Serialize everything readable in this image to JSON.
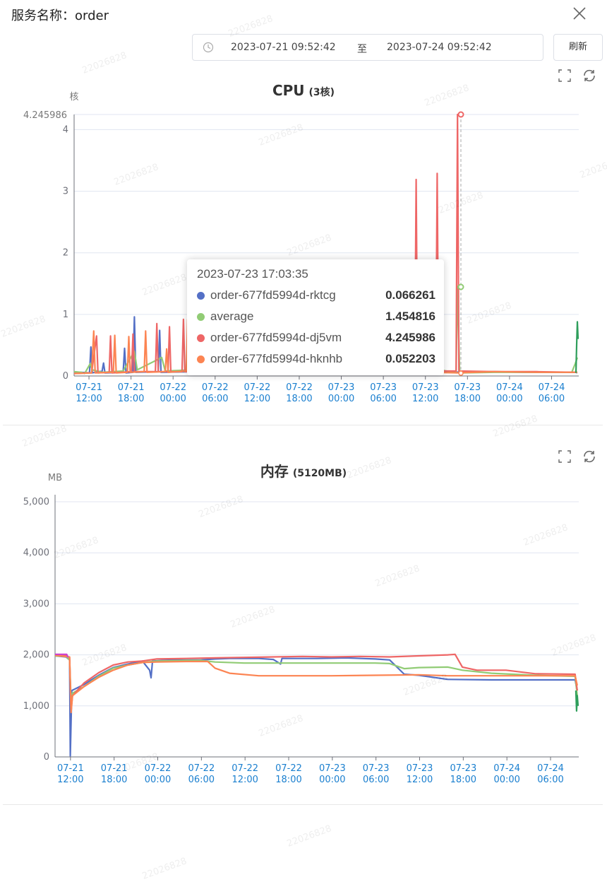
{
  "header": {
    "title": "服务名称：order",
    "date_start": "2023-07-21 09:52:42",
    "date_sep": "至",
    "date_end": "2023-07-24 09:52:42",
    "refresh_label": "刷新",
    "watermark": "22026828"
  },
  "tooltip": {
    "time": "2023-07-23 17:03:35",
    "rows": [
      {
        "name": "order-677fd5994d-rktcg",
        "value": "0.066261",
        "color": "#5470c6"
      },
      {
        "name": "average",
        "value": "1.454816",
        "color": "#91cc75"
      },
      {
        "name": "order-677fd5994d-dj5vm",
        "value": "4.245986",
        "color": "#ee6666"
      },
      {
        "name": "order-677fd5994d-hknhb",
        "value": "0.052203",
        "color": "#fc8452"
      }
    ]
  },
  "chart_data": [
    {
      "type": "line",
      "title": "CPU",
      "subtitle": "(3核)",
      "ylabel": "核",
      "ymax_label": "4.245986",
      "ylim": [
        0,
        4.245986
      ],
      "y_ticks": [
        "0",
        "1",
        "2",
        "3",
        "4"
      ],
      "x_ticks": [
        "07-21\n12:00",
        "07-21\n18:00",
        "07-22\n00:00",
        "07-22\n06:00",
        "07-22\n12:00",
        "07-22\n18:00",
        "07-23\n00:00",
        "07-23\n06:00",
        "07-23\n12:00",
        "07-23\n18:00",
        "07-24\n00:00",
        "07-24\n06:00"
      ],
      "x_tick_hours": [
        2.12,
        8.12,
        14.12,
        20.12,
        26.12,
        32.12,
        38.12,
        44.12,
        50.12,
        56.12,
        62.12,
        68.12
      ],
      "x_range_hours": [
        0,
        72
      ],
      "series": [
        {
          "name": "order-677fd5994d-rktcg",
          "color": "#5470c6",
          "points": [
            [
              0,
              0.05
            ],
            [
              1,
              0.06
            ],
            [
              2.2,
              0.05
            ],
            [
              2.4,
              0.47
            ],
            [
              2.6,
              0.05
            ],
            [
              4,
              0.08
            ],
            [
              4.2,
              0.21
            ],
            [
              4.4,
              0.05
            ],
            [
              7,
              0.06
            ],
            [
              7.2,
              0.45
            ],
            [
              7.4,
              0.05
            ],
            [
              8.4,
              0.06
            ],
            [
              8.6,
              0.96
            ],
            [
              8.8,
              0.06
            ],
            [
              12,
              0.07
            ],
            [
              12.2,
              0.74
            ],
            [
              12.4,
              0.06
            ],
            [
              17,
              0.07
            ],
            [
              17.3,
              0.62
            ],
            [
              17.6,
              0.06
            ],
            [
              20,
              0.06
            ],
            [
              30,
              0.07
            ],
            [
              40,
              0.06
            ],
            [
              48,
              0.06
            ],
            [
              52,
              0.07
            ],
            [
              56,
              0.06
            ],
            [
              60,
              0.07
            ],
            [
              64,
              0.06
            ],
            [
              71.6,
              0.06
            ],
            [
              71.8,
              0.05
            ]
          ]
        },
        {
          "name": "average",
          "color": "#91cc75",
          "points": [
            [
              0,
              0.07
            ],
            [
              1,
              0.06
            ],
            [
              1.5,
              0.04
            ],
            [
              2.3,
              0.2
            ],
            [
              2.6,
              0.1
            ],
            [
              4,
              0.06
            ],
            [
              7,
              0.08
            ],
            [
              8.6,
              0.4
            ],
            [
              9,
              0.1
            ],
            [
              12.5,
              0.3
            ],
            [
              13,
              0.08
            ],
            [
              17,
              0.1
            ],
            [
              20,
              0.09
            ],
            [
              30,
              0.08
            ],
            [
              40,
              0.07
            ],
            [
              48.8,
              0.08
            ],
            [
              49,
              1.1
            ],
            [
              49.2,
              0.1
            ],
            [
              51.6,
              0.1
            ],
            [
              51.9,
              1.13
            ],
            [
              52.2,
              0.1
            ],
            [
              54.5,
              0.05
            ],
            [
              54.7,
              1.454816
            ],
            [
              55,
              0.05
            ],
            [
              60,
              0.06
            ],
            [
              64,
              0.06
            ],
            [
              71,
              0.06
            ],
            [
              71.5,
              0.2
            ],
            [
              71.8,
              0.3
            ]
          ]
        },
        {
          "name": "order-677fd5994d-dj5vm",
          "color": "#ee6666",
          "points": [
            [
              0,
              0.04
            ],
            [
              2.5,
              0.05
            ],
            [
              3.2,
              0.65
            ],
            [
              3.4,
              0.05
            ],
            [
              5,
              0.06
            ],
            [
              5.2,
              0.65
            ],
            [
              5.4,
              0.05
            ],
            [
              8.2,
              0.07
            ],
            [
              8.4,
              0.68
            ],
            [
              8.6,
              0.07
            ],
            [
              11.6,
              0.07
            ],
            [
              11.8,
              0.85
            ],
            [
              12,
              0.07
            ],
            [
              13.4,
              0.07
            ],
            [
              13.6,
              0.8
            ],
            [
              13.8,
              0.07
            ],
            [
              15.4,
              0.07
            ],
            [
              15.6,
              0.92
            ],
            [
              15.8,
              0.07
            ],
            [
              20,
              0.08
            ],
            [
              30,
              0.08
            ],
            [
              40,
              0.07
            ],
            [
              48.6,
              0.08
            ],
            [
              48.8,
              3.19
            ],
            [
              49,
              0.08
            ],
            [
              51.6,
              0.08
            ],
            [
              51.8,
              3.29
            ],
            [
              52,
              0.08
            ],
            [
              54.5,
              0.08
            ],
            [
              54.7,
              4.245986
            ],
            [
              54.9,
              0.08
            ],
            [
              60,
              0.07
            ],
            [
              66,
              0.07
            ],
            [
              71.8,
              0.06
            ]
          ]
        },
        {
          "name": "order-677fd5994d-hknhb",
          "color": "#fc8452",
          "points": [
            [
              0,
              0.04
            ],
            [
              2.5,
              0.05
            ],
            [
              2.8,
              0.73
            ],
            [
              3,
              0.05
            ],
            [
              5.6,
              0.06
            ],
            [
              5.8,
              0.66
            ],
            [
              6,
              0.05
            ],
            [
              7.6,
              0.06
            ],
            [
              7.8,
              0.64
            ],
            [
              8,
              0.06
            ],
            [
              10,
              0.07
            ],
            [
              10.2,
              0.73
            ],
            [
              10.4,
              0.06
            ],
            [
              13,
              0.07
            ],
            [
              13.2,
              0.44
            ],
            [
              13.4,
              0.06
            ],
            [
              16,
              0.08
            ],
            [
              16.2,
              0.92
            ],
            [
              16.4,
              0.07
            ],
            [
              20,
              0.08
            ],
            [
              30,
              0.08
            ],
            [
              40,
              0.07
            ],
            [
              50,
              0.06
            ],
            [
              54.7,
              0.052203
            ],
            [
              60,
              0.07
            ],
            [
              66,
              0.06
            ],
            [
              71.8,
              0.06
            ]
          ]
        },
        {
          "name": "",
          "color": "#2e9e5b",
          "points": [
            [
              71.6,
              0.05
            ],
            [
              71.7,
              0.5
            ],
            [
              71.8,
              0.88
            ],
            [
              71.9,
              0.6
            ]
          ]
        }
      ]
    },
    {
      "type": "line",
      "title": "内存",
      "subtitle": "(5120MB)",
      "ylabel": "MB",
      "ylim": [
        0,
        5000
      ],
      "y_ticks": [
        "0",
        "1,000",
        "2,000",
        "3,000",
        "4,000",
        "5,000"
      ],
      "x_ticks": [
        "07-21\n12:00",
        "07-21\n18:00",
        "07-22\n00:00",
        "07-22\n06:00",
        "07-22\n12:00",
        "07-22\n18:00",
        "07-23\n00:00",
        "07-23\n06:00",
        "07-23\n12:00",
        "07-23\n18:00",
        "07-24\n00:00",
        "07-24\n06:00"
      ],
      "x_tick_hours": [
        2.12,
        8.12,
        14.12,
        20.12,
        26.12,
        32.12,
        38.12,
        44.12,
        50.12,
        56.12,
        62.12,
        68.12
      ],
      "x_range_hours": [
        0,
        72
      ],
      "series": [
        {
          "name": "order-677fd5994d-rktcg",
          "color": "#5470c6",
          "points": [
            [
              0,
              1980
            ],
            [
              1.5,
              1960
            ],
            [
              2,
              1900
            ],
            [
              2.1,
              20
            ],
            [
              2.3,
              1300
            ],
            [
              4,
              1420
            ],
            [
              6,
              1600
            ],
            [
              8,
              1750
            ],
            [
              10,
              1820
            ],
            [
              12,
              1880
            ],
            [
              13,
              1700
            ],
            [
              13.2,
              1550
            ],
            [
              13.4,
              1880
            ],
            [
              16,
              1900
            ],
            [
              20,
              1900
            ],
            [
              22,
              1920
            ],
            [
              24,
              1930
            ],
            [
              28,
              1930
            ],
            [
              30,
              1910
            ],
            [
              31,
              1820
            ],
            [
              31.2,
              1930
            ],
            [
              36,
              1930
            ],
            [
              40,
              1940
            ],
            [
              44,
              1920
            ],
            [
              46,
              1900
            ],
            [
              48,
              1620
            ],
            [
              50,
              1600
            ],
            [
              54,
              1520
            ],
            [
              60,
              1510
            ],
            [
              66,
              1510
            ],
            [
              71.5,
              1510
            ],
            [
              71.8,
              1300
            ]
          ]
        },
        {
          "name": "average",
          "color": "#91cc75",
          "points": [
            [
              0,
              1980
            ],
            [
              1.5,
              1970
            ],
            [
              2,
              1900
            ],
            [
              2.2,
              1100
            ],
            [
              2.4,
              1250
            ],
            [
              4,
              1380
            ],
            [
              6,
              1580
            ],
            [
              8,
              1740
            ],
            [
              10,
              1800
            ],
            [
              12,
              1850
            ],
            [
              14,
              1880
            ],
            [
              18,
              1890
            ],
            [
              20,
              1890
            ],
            [
              22,
              1860
            ],
            [
              26,
              1840
            ],
            [
              30,
              1840
            ],
            [
              36,
              1840
            ],
            [
              40,
              1840
            ],
            [
              44,
              1840
            ],
            [
              46,
              1830
            ],
            [
              48,
              1730
            ],
            [
              50,
              1750
            ],
            [
              54,
              1760
            ],
            [
              56,
              1700
            ],
            [
              60,
              1640
            ],
            [
              66,
              1600
            ],
            [
              71.5,
              1580
            ],
            [
              71.8,
              1200
            ]
          ]
        },
        {
          "name": "order-677fd5994d-dj5vm",
          "color": "#ee6666",
          "points": [
            [
              0,
              1990
            ],
            [
              1.5,
              1980
            ],
            [
              2,
              1950
            ],
            [
              2.2,
              900
            ],
            [
              2.4,
              1200
            ],
            [
              4,
              1450
            ],
            [
              6,
              1650
            ],
            [
              8,
              1800
            ],
            [
              10,
              1860
            ],
            [
              12,
              1880
            ],
            [
              14,
              1920
            ],
            [
              18,
              1930
            ],
            [
              22,
              1940
            ],
            [
              26,
              1950
            ],
            [
              30,
              1960
            ],
            [
              34,
              1970
            ],
            [
              38,
              1960
            ],
            [
              42,
              1970
            ],
            [
              46,
              1960
            ],
            [
              50,
              1980
            ],
            [
              54,
              2000
            ],
            [
              55,
              2010
            ],
            [
              56,
              1760
            ],
            [
              58,
              1700
            ],
            [
              62,
              1700
            ],
            [
              66,
              1630
            ],
            [
              71.5,
              1620
            ],
            [
              71.8,
              1300
            ]
          ]
        },
        {
          "name": "order-677fd5994d-hknhb",
          "color": "#fc8452",
          "points": [
            [
              0,
              1990
            ],
            [
              2,
              1960
            ],
            [
              2.2,
              870
            ],
            [
              2.4,
              1200
            ],
            [
              4,
              1380
            ],
            [
              6,
              1560
            ],
            [
              8,
              1700
            ],
            [
              10,
              1800
            ],
            [
              12,
              1850
            ],
            [
              14,
              1860
            ],
            [
              18,
              1870
            ],
            [
              21,
              1870
            ],
            [
              22,
              1740
            ],
            [
              24,
              1640
            ],
            [
              28,
              1590
            ],
            [
              32,
              1590
            ],
            [
              38,
              1590
            ],
            [
              44,
              1600
            ],
            [
              50,
              1610
            ],
            [
              54,
              1590
            ],
            [
              60,
              1590
            ],
            [
              66,
              1590
            ],
            [
              71.5,
              1590
            ],
            [
              71.8,
              1400
            ]
          ]
        },
        {
          "name": "",
          "color": "#cc44cc",
          "points": [
            [
              0,
              2010
            ],
            [
              1.6,
              2010
            ],
            [
              1.8,
              1950
            ]
          ]
        },
        {
          "name": "",
          "color": "#2e9e5b",
          "points": [
            [
              71.6,
              1300
            ],
            [
              71.7,
              900
            ],
            [
              71.8,
              1200
            ],
            [
              71.9,
              1000
            ]
          ]
        }
      ]
    }
  ]
}
